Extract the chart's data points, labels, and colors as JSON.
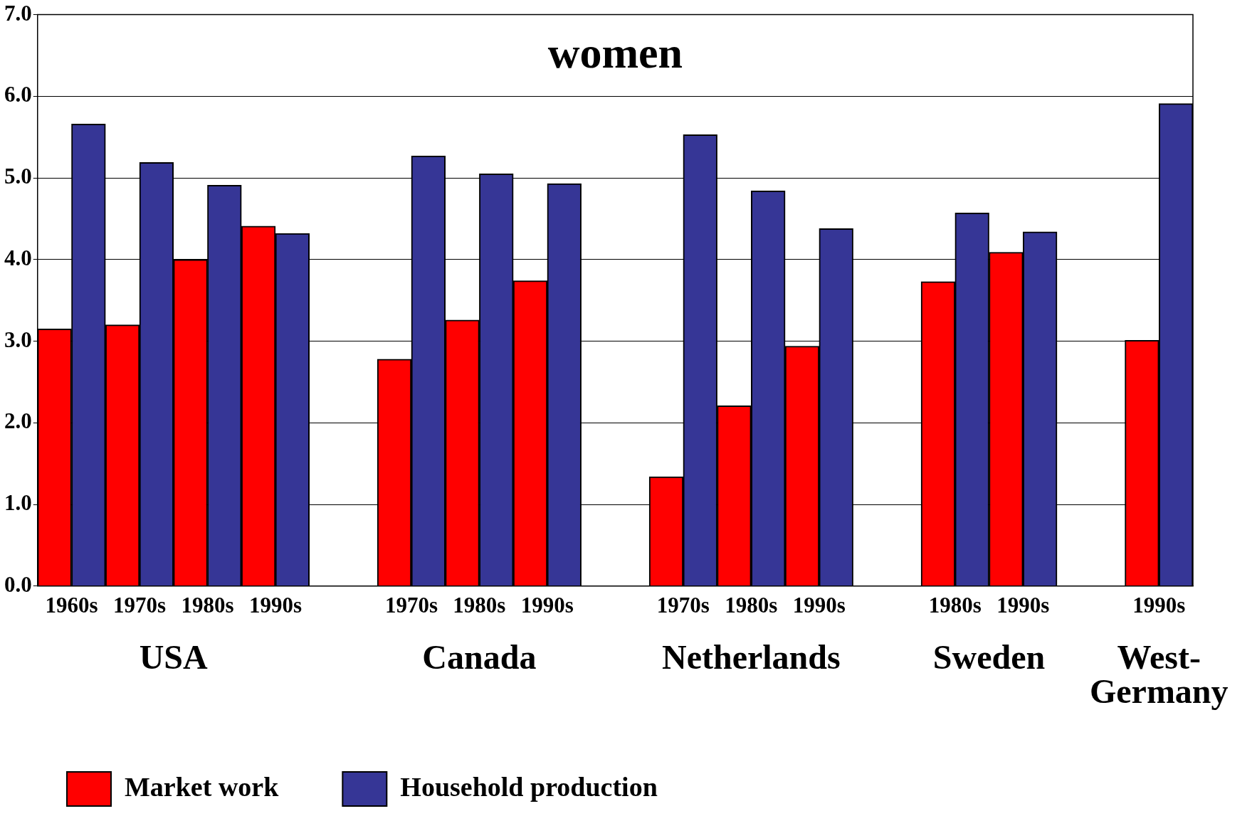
{
  "chart_data": {
    "type": "bar",
    "title": "women",
    "categories": [
      "1960s",
      "1970s",
      "1980s",
      "1990s",
      null,
      "1970s",
      "1980s",
      "1990s",
      null,
      "1970s",
      "1980s",
      "1990s",
      null,
      "1980s",
      "1990s",
      null,
      "1990s"
    ],
    "series": [
      {
        "name": "Market work",
        "color": "#ff0000",
        "values": [
          3.15,
          3.2,
          4.0,
          4.41,
          null,
          2.78,
          3.26,
          3.74,
          null,
          1.34,
          2.21,
          2.94,
          null,
          3.73,
          4.09,
          null,
          3.01
        ]
      },
      {
        "name": "Household production",
        "color": "#363696",
        "values": [
          5.66,
          5.19,
          4.91,
          4.32,
          null,
          5.27,
          5.05,
          4.93,
          null,
          5.53,
          4.84,
          4.38,
          null,
          4.57,
          4.34,
          null,
          5.91
        ]
      }
    ],
    "annotations": [
      "USA",
      "Canada",
      "Netherlands",
      "Sweden",
      "West-Germany"
    ],
    "ylim": [
      0,
      7
    ],
    "yticks": [
      {
        "value": 0,
        "label": "0.0"
      },
      {
        "value": 1,
        "label": "1.0"
      },
      {
        "value": 2,
        "label": "2.0"
      },
      {
        "value": 3,
        "label": "3.0"
      },
      {
        "value": 4,
        "label": "4.0"
      },
      {
        "value": 5,
        "label": "5.0"
      },
      {
        "value": 6,
        "label": "6.0"
      },
      {
        "value": 7,
        "label": "7.0"
      }
    ],
    "grid": "y",
    "legend": "bottom left"
  }
}
